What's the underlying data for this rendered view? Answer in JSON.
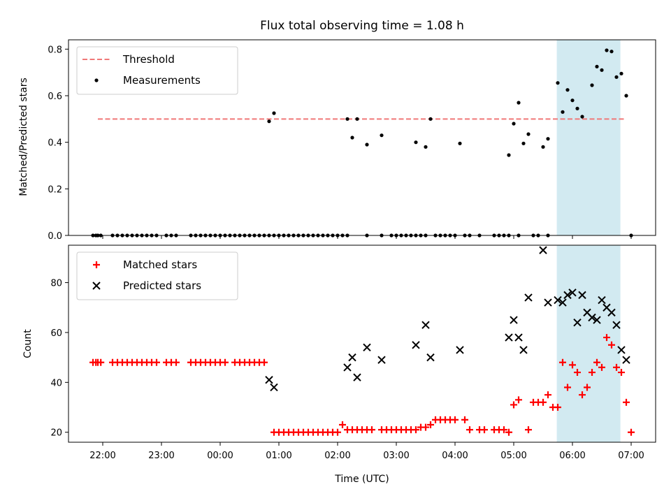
{
  "chart_data": [
    {
      "type": "scatter",
      "title": "Flux total observing time = 1.08 h",
      "xlabel": "",
      "ylabel": "Matched/Predicted stars",
      "ylim": [
        0,
        0.84
      ],
      "yticks": [
        "0.0",
        "0.2",
        "0.4",
        "0.6",
        "0.8"
      ],
      "xlim": [
        "21:25",
        "07:25"
      ],
      "legend_position": "top-left",
      "highlight_span": [
        "05:44",
        "06:49"
      ],
      "threshold": {
        "name": "Threshold",
        "y": 0.5,
        "x": [
          "21:55",
          "06:55"
        ],
        "color": "#f07878"
      },
      "series": [
        {
          "name": "Measurements",
          "color": "#000000",
          "x": [
            "21:50",
            "21:53",
            "21:55",
            "21:58",
            "22:10",
            "22:15",
            "22:20",
            "22:25",
            "22:30",
            "22:35",
            "22:40",
            "22:45",
            "22:50",
            "22:55",
            "23:05",
            "23:10",
            "23:15",
            "23:30",
            "23:35",
            "23:40",
            "23:45",
            "23:50",
            "23:55",
            "00:00",
            "00:05",
            "00:10",
            "00:15",
            "00:20",
            "00:25",
            "00:30",
            "00:35",
            "00:40",
            "00:45",
            "00:50",
            "00:55",
            "01:00",
            "01:05",
            "01:10",
            "01:15",
            "01:20",
            "01:25",
            "01:30",
            "01:35",
            "01:40",
            "01:45",
            "01:50",
            "01:55",
            "02:00",
            "02:05",
            "02:10",
            "02:30",
            "02:45",
            "02:55",
            "03:00",
            "03:05",
            "03:10",
            "03:15",
            "03:20",
            "03:25",
            "03:30",
            "03:40",
            "03:45",
            "03:50",
            "03:55",
            "04:00",
            "04:10",
            "04:15",
            "04:25",
            "04:40",
            "04:45",
            "04:50",
            "04:55",
            "05:05",
            "05:20",
            "05:25",
            "05:35",
            "07:00",
            "00:50",
            "00:55",
            "02:10",
            "02:15",
            "02:20",
            "02:30",
            "02:45",
            "03:20",
            "03:30",
            "03:35",
            "04:05",
            "04:55",
            "05:00",
            "05:05",
            "05:10",
            "05:15",
            "05:30",
            "05:35",
            "05:45",
            "05:50",
            "05:55",
            "06:00",
            "06:05",
            "06:10",
            "06:20",
            "06:25",
            "06:30",
            "06:35",
            "06:40",
            "06:45",
            "06:50",
            "06:55"
          ],
          "y": [
            0,
            0,
            0,
            0,
            0,
            0,
            0,
            0,
            0,
            0,
            0,
            0,
            0,
            0,
            0,
            0,
            0,
            0,
            0,
            0,
            0,
            0,
            0,
            0,
            0,
            0,
            0,
            0,
            0,
            0,
            0,
            0,
            0,
            0,
            0,
            0,
            0,
            0,
            0,
            0,
            0,
            0,
            0,
            0,
            0,
            0,
            0,
            0,
            0,
            0,
            0,
            0,
            0,
            0,
            0,
            0,
            0,
            0,
            0,
            0,
            0,
            0,
            0,
            0,
            0,
            0,
            0,
            0,
            0,
            0,
            0,
            0,
            0,
            0,
            0,
            0,
            0,
            0.49,
            0.525,
            0.5,
            0.42,
            0.5,
            0.39,
            0.43,
            0.4,
            0.38,
            0.5,
            0.395,
            0.345,
            0.48,
            0.57,
            0.395,
            0.435,
            0.38,
            0.415,
            0.655,
            0.53,
            0.625,
            0.58,
            0.545,
            0.51,
            0.645,
            0.725,
            0.71,
            0.795,
            0.79,
            0.68,
            0.695,
            0.6
          ]
        }
      ]
    },
    {
      "type": "scatter",
      "title": "",
      "xlabel": "Time (UTC)",
      "ylabel": "Count",
      "ylim": [
        16,
        95
      ],
      "yticks": [
        "20",
        "40",
        "60",
        "80"
      ],
      "xticks": [
        "22:00",
        "23:00",
        "00:00",
        "01:00",
        "02:00",
        "03:00",
        "04:00",
        "05:00",
        "06:00",
        "07:00"
      ],
      "xlim": [
        "21:25",
        "07:25"
      ],
      "legend_position": "top-left",
      "highlight_span": [
        "05:44",
        "06:49"
      ],
      "series": [
        {
          "name": "Matched stars",
          "color": "#ff0000",
          "marker": "plus",
          "x": [
            "21:50",
            "21:53",
            "21:55",
            "21:58",
            "22:10",
            "22:15",
            "22:20",
            "22:25",
            "22:30",
            "22:35",
            "22:40",
            "22:45",
            "22:50",
            "22:55",
            "23:05",
            "23:10",
            "23:15",
            "23:30",
            "23:35",
            "23:40",
            "23:45",
            "23:50",
            "23:55",
            "00:00",
            "00:05",
            "00:15",
            "00:20",
            "00:25",
            "00:30",
            "00:35",
            "00:40",
            "00:45",
            "00:55",
            "01:00",
            "01:05",
            "01:10",
            "01:15",
            "01:20",
            "01:25",
            "01:30",
            "01:35",
            "01:40",
            "01:45",
            "01:50",
            "01:55",
            "02:00",
            "02:05",
            "02:10",
            "02:15",
            "02:20",
            "02:25",
            "02:30",
            "02:35",
            "02:45",
            "02:50",
            "02:55",
            "03:00",
            "03:05",
            "03:10",
            "03:15",
            "03:20",
            "03:25",
            "03:30",
            "03:35",
            "03:40",
            "03:45",
            "03:50",
            "03:55",
            "04:00",
            "04:10",
            "04:15",
            "04:25",
            "04:30",
            "04:40",
            "04:45",
            "04:50",
            "04:55",
            "05:00",
            "05:05",
            "05:15",
            "05:20",
            "05:25",
            "05:30",
            "05:35",
            "05:40",
            "05:45",
            "05:50",
            "05:55",
            "06:00",
            "06:05",
            "06:10",
            "06:15",
            "06:20",
            "06:25",
            "06:30",
            "06:35",
            "06:40",
            "06:45",
            "06:50",
            "06:55",
            "07:00"
          ],
          "y": [
            48,
            48,
            48,
            48,
            48,
            48,
            48,
            48,
            48,
            48,
            48,
            48,
            48,
            48,
            48,
            48,
            48,
            48,
            48,
            48,
            48,
            48,
            48,
            48,
            48,
            48,
            48,
            48,
            48,
            48,
            48,
            48,
            20,
            20,
            20,
            20,
            20,
            20,
            20,
            20,
            20,
            20,
            20,
            20,
            20,
            20,
            23,
            21,
            21,
            21,
            21,
            21,
            21,
            21,
            21,
            21,
            21,
            21,
            21,
            21,
            21,
            22,
            22,
            23,
            25,
            25,
            25,
            25,
            25,
            25,
            21,
            21,
            21,
            21,
            21,
            21,
            20,
            31,
            33,
            21,
            32,
            32,
            32,
            35,
            30,
            30,
            48,
            38,
            47,
            44,
            35,
            38,
            44,
            48,
            46,
            58,
            55,
            46,
            44,
            32,
            20
          ]
        },
        {
          "name": "Predicted stars",
          "color": "#000000",
          "marker": "x",
          "x": [
            "00:50",
            "00:55",
            "02:10",
            "02:15",
            "02:20",
            "02:30",
            "02:45",
            "03:20",
            "03:30",
            "03:35",
            "04:05",
            "04:55",
            "05:00",
            "05:05",
            "05:10",
            "05:15",
            "05:30",
            "05:35",
            "05:45",
            "05:50",
            "05:55",
            "06:00",
            "06:05",
            "06:10",
            "06:15",
            "06:20",
            "06:25",
            "06:30",
            "06:35",
            "06:40",
            "06:45",
            "06:50",
            "06:55"
          ],
          "y": [
            41,
            38,
            46,
            50,
            42,
            54,
            49,
            55,
            63,
            50,
            53,
            58,
            65,
            58,
            53,
            74,
            93,
            72,
            73,
            72,
            75,
            76,
            64,
            75,
            68,
            66,
            65,
            73,
            70,
            68,
            63,
            53,
            49
          ]
        }
      ]
    }
  ]
}
